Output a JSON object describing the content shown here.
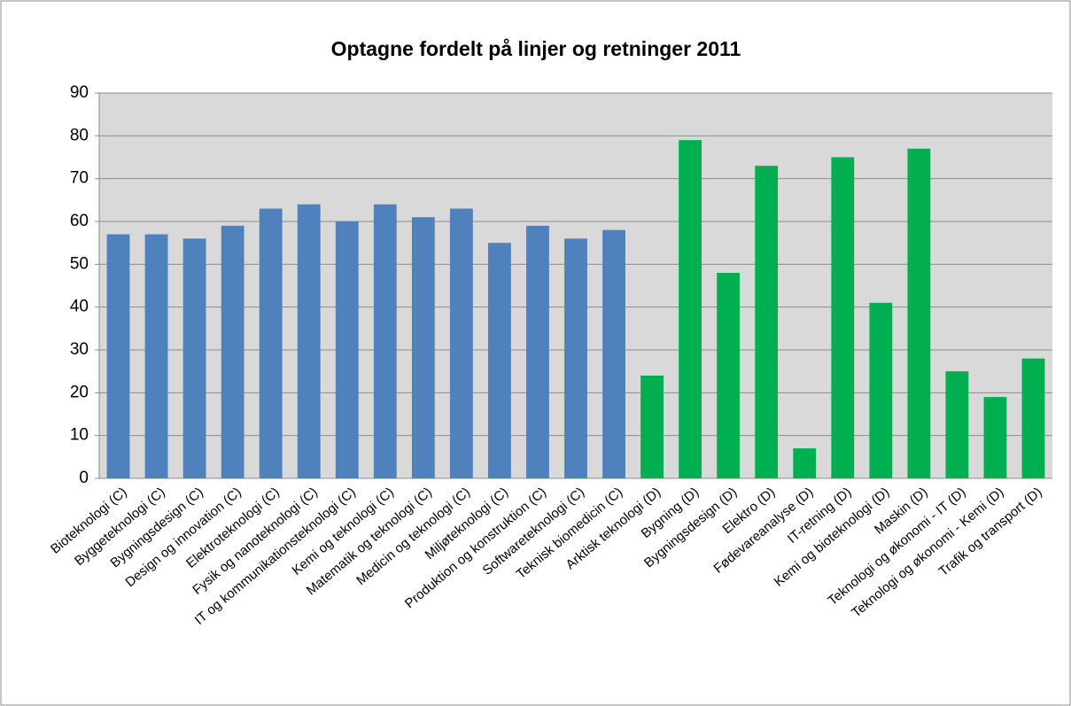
{
  "chart_data": {
    "type": "bar",
    "title": "Optagne fordelt på linjer og retninger 2011",
    "categories": [
      "Bioteknologi (C)",
      "Byggeteknologi (C)",
      "Bygningsdesign (C)",
      "Design og innovation (C)",
      "Elektroteknologi (C)",
      "Fysik og nanoteknologi (C)",
      "IT og kommunikationsteknologi (C)",
      "Kemi og teknologi (C)",
      "Matematik og teknologi (C)",
      "Medicin og teknologi (C)",
      "Miljøteknologi (C)",
      "Produktion og konstruktion (C)",
      "Softwareteknologi (C)",
      "Teknisk biomedicin (C)",
      "Arktisk teknologi (D)",
      "Bygning (D)",
      "Bygningsdesign (D)",
      "Elektro (D)",
      "Fødevareanalyse (D)",
      "IT-retning (D)",
      "Kemi og bioteknologi (D)",
      "Maskin (D)",
      "Teknologi og økonomi - IT (D)",
      "Teknologi og økonomi - Kemi (D)",
      "Trafik og transport (D)"
    ],
    "values": [
      57,
      57,
      56,
      59,
      63,
      64,
      60,
      64,
      61,
      63,
      55,
      59,
      56,
      58,
      24,
      79,
      48,
      73,
      7,
      75,
      41,
      77,
      25,
      19,
      28
    ],
    "colors": [
      "#4f81bd",
      "#4f81bd",
      "#4f81bd",
      "#4f81bd",
      "#4f81bd",
      "#4f81bd",
      "#4f81bd",
      "#4f81bd",
      "#4f81bd",
      "#4f81bd",
      "#4f81bd",
      "#4f81bd",
      "#4f81bd",
      "#4f81bd",
      "#00b050",
      "#00b050",
      "#00b050",
      "#00b050",
      "#00b050",
      "#00b050",
      "#00b050",
      "#00b050",
      "#00b050",
      "#00b050",
      "#00b050"
    ],
    "ylim": [
      0,
      90
    ],
    "yticks": [
      0,
      10,
      20,
      30,
      40,
      50,
      60,
      70,
      80,
      90
    ],
    "grid": true
  }
}
